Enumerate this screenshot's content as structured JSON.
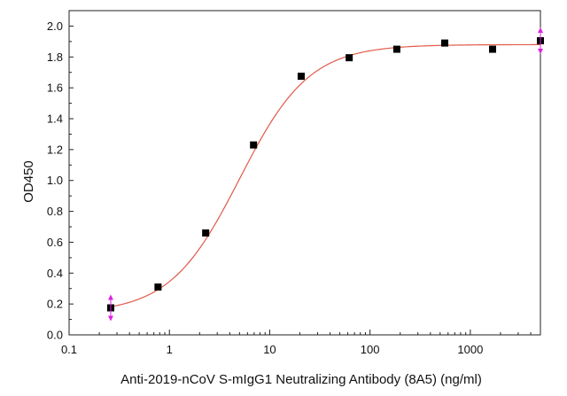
{
  "chart_data": {
    "type": "scatter",
    "title": "",
    "xlabel": "Anti-2019-nCoV S-mIgG1 Neutralizing Antibody (8A5) (ng/ml)",
    "ylabel": "OD450",
    "x_scale": "log",
    "xlim": [
      0.1,
      5000
    ],
    "ylim": [
      0,
      2.1
    ],
    "x_ticks": [
      "0.1",
      "1",
      "10",
      "100",
      "1000"
    ],
    "y_ticks": [
      "0.0",
      "0.2",
      "0.4",
      "0.6",
      "0.8",
      "1.0",
      "1.2",
      "1.4",
      "1.6",
      "1.8",
      "2.0"
    ],
    "grid": false,
    "legend": "none",
    "series": [
      {
        "marker": "square",
        "color": "#000000",
        "x": [
          0.26,
          0.77,
          2.3,
          6.9,
          20.6,
          62,
          185,
          556,
          1667,
          5000
        ],
        "y": [
          0.175,
          0.31,
          0.66,
          1.23,
          1.675,
          1.795,
          1.85,
          1.89,
          1.85,
          1.905
        ]
      }
    ],
    "fit_curve": {
      "type": "4PL",
      "color": "#e05a4a",
      "bottom": 0.14,
      "top": 1.88,
      "ec50": 5.0,
      "hill": 1.25
    },
    "error_markers": {
      "color": "#e020e0",
      "at_points": [
        0,
        9
      ]
    }
  }
}
